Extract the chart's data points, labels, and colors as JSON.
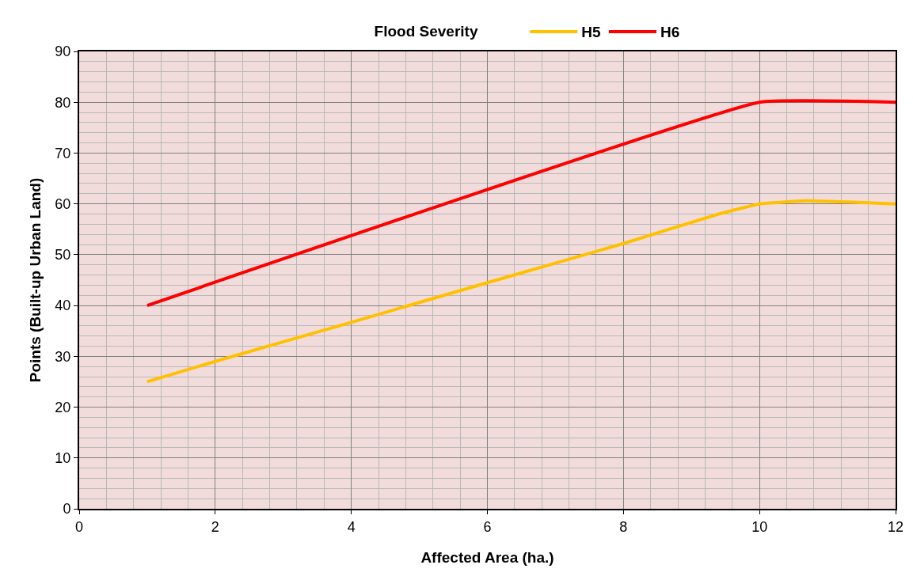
{
  "chart_data": {
    "type": "line",
    "legend_title": "Flood Severity",
    "xlabel": "Affected Area (ha.)",
    "ylabel": "Points (Built-up Urban Land)",
    "xlim": [
      0,
      12
    ],
    "xticks": [
      0,
      2,
      4,
      6,
      8,
      10,
      12
    ],
    "ylim": [
      0,
      90
    ],
    "yticks": [
      0,
      10,
      20,
      30,
      40,
      50,
      60,
      70,
      80,
      90
    ],
    "grid": true,
    "legend": "top",
    "marker": "none",
    "line_style": "solid",
    "series": [
      {
        "name": "H5",
        "color": "#ffc000",
        "x": [
          1,
          2,
          4,
          6,
          8,
          9.4,
          10,
          10.7,
          12
        ],
        "values": [
          25,
          29,
          36.7,
          44.5,
          52.2,
          58,
          60,
          60.6,
          60
        ]
      },
      {
        "name": "H6",
        "color": "#ff0000",
        "x": [
          1,
          10,
          12
        ],
        "values": [
          40,
          80,
          80
        ]
      }
    ]
  }
}
